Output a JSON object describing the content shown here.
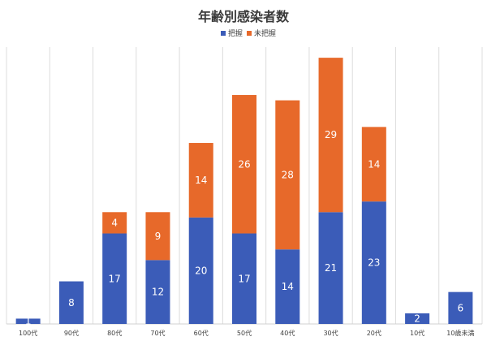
{
  "chart_data": {
    "type": "bar",
    "stacked": true,
    "title": "年齢別感染者数",
    "categories": [
      "100代",
      "90代",
      "80代",
      "70代",
      "60代",
      "50代",
      "40代",
      "30代",
      "20代",
      "10代",
      "10歳未満"
    ],
    "series": [
      {
        "name": "把握",
        "color": "#3b5cb8",
        "values": [
          1,
          8,
          17,
          12,
          20,
          17,
          14,
          21,
          23,
          2,
          6
        ]
      },
      {
        "name": "未把握",
        "color": "#e7692a",
        "values": [
          0,
          0,
          4,
          9,
          14,
          26,
          28,
          29,
          14,
          0,
          0
        ]
      }
    ],
    "ylim": [
      0,
      52
    ],
    "legend_position": "top",
    "vertical_gridlines": true
  }
}
